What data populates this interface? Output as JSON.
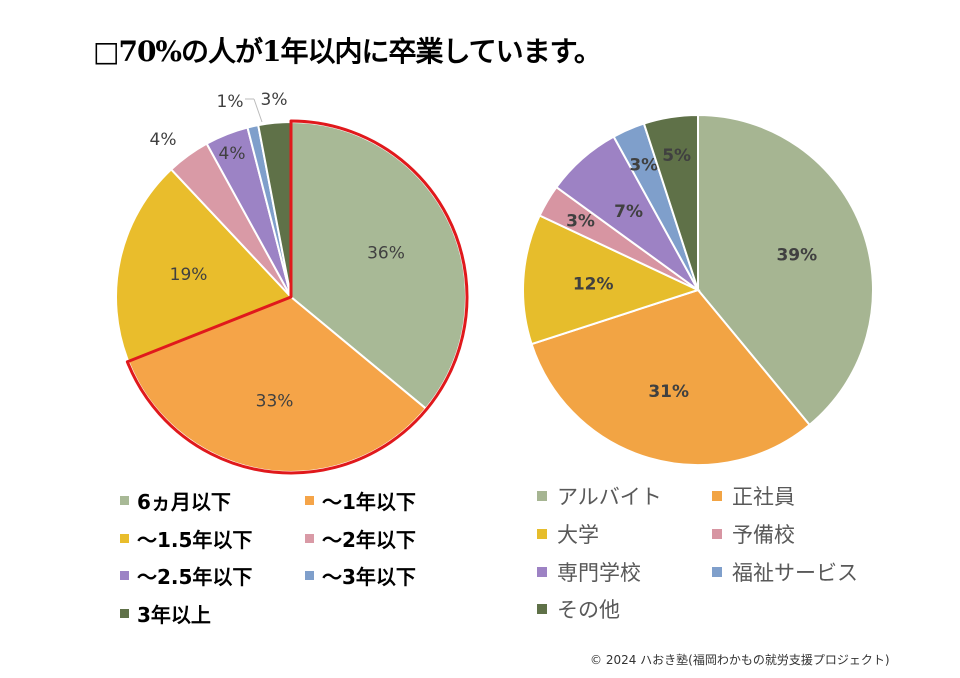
{
  "title": "□70%の人が1年以内に卒業しています。",
  "footer": "© 2024 ハおき塾(福岡わかもの就労支援プロジェクト)",
  "chart_data": [
    {
      "type": "pie",
      "name": "left",
      "categories": [
        "6ヵ月以下",
        "〜1年以下",
        "〜1.5年以下",
        "〜2年以下",
        "〜2.5年以下",
        "〜3年以下",
        "3年以上"
      ],
      "values": [
        36,
        33,
        19,
        4,
        4,
        1,
        3
      ],
      "labels": [
        "36%",
        "33%",
        "19%",
        "4%",
        "4%",
        "1%",
        "3%"
      ],
      "colors": [
        "#a8b996",
        "#f5a448",
        "#e9bd2c",
        "#d99aa6",
        "#9c83c5",
        "#7f9fcb",
        "#5f7148"
      ],
      "highlight": {
        "slices": [
          0,
          1
        ],
        "color": "#e0191c"
      },
      "legend_position": "bottom"
    },
    {
      "type": "pie",
      "name": "right",
      "categories": [
        "アルバイト",
        "正社員",
        "大学",
        "予備校",
        "専門学校",
        "福祉サービス",
        "その他"
      ],
      "values": [
        39,
        31,
        12,
        3,
        7,
        3,
        5
      ],
      "labels": [
        "39%",
        "31%",
        "12%",
        "3%",
        "7%",
        "3%",
        "5%"
      ],
      "colors": [
        "#a6b592",
        "#f2a444",
        "#e6bd2c",
        "#d795a2",
        "#9d82c4",
        "#7f9fcb",
        "#5f7148"
      ],
      "legend_position": "bottom"
    }
  ]
}
